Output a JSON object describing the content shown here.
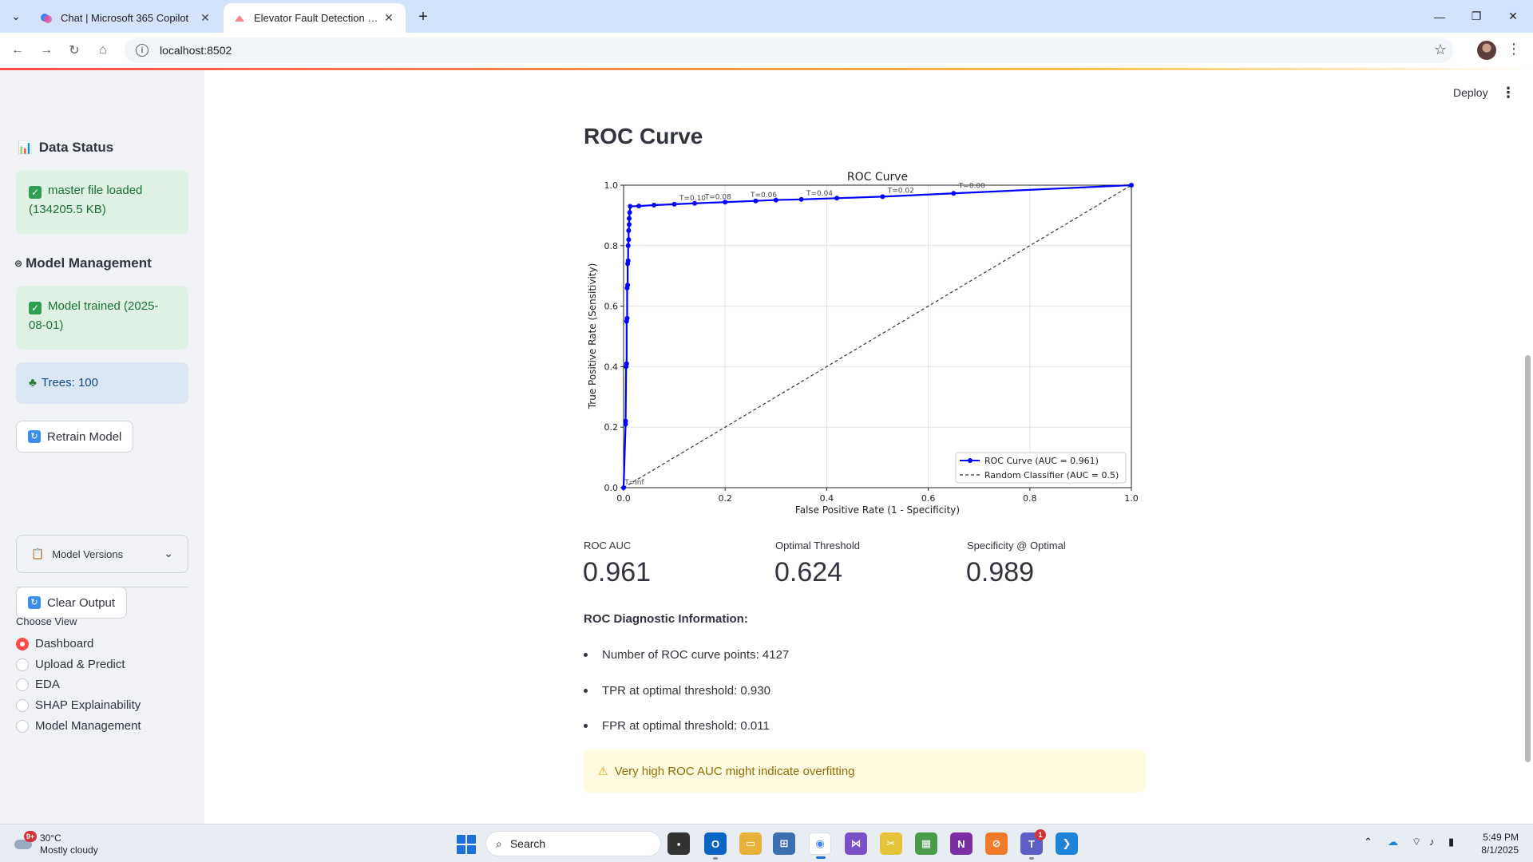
{
  "browser": {
    "tabs": [
      {
        "title": "Chat | Microsoft 365 Copilot",
        "active": false
      },
      {
        "title": "Elevator Fault Detection Dashboard",
        "active": true
      }
    ],
    "url": "localhost:8502"
  },
  "app": {
    "deploy_label": "Deploy",
    "sidebar": {
      "data_status_title": "Data Status",
      "data_status_msg": "master file loaded (134205.5 KB)",
      "model_mgmt_title": "Model Management",
      "model_trained_msg": "Model trained (2025-08-01)",
      "trees_msg": "Trees: 100",
      "retrain_label": "Retrain Model",
      "model_versions_label": "Model Versions",
      "clear_output_label": "Clear Output",
      "choose_view_label": "Choose View",
      "views": [
        "Dashboard",
        "Upload & Predict",
        "EDA",
        "SHAP Explainability",
        "Model Management"
      ],
      "selected_view": "Dashboard"
    },
    "main": {
      "section_title": "ROC Curve",
      "metrics": [
        {
          "label": "ROC AUC",
          "value": "0.961"
        },
        {
          "label": "Optimal Threshold",
          "value": "0.624"
        },
        {
          "label": "Specificity @ Optimal",
          "value": "0.989"
        }
      ],
      "diagnostic_title": "ROC Diagnostic Information:",
      "diagnostics": [
        "Number of ROC curve points: 4127",
        "TPR at optimal threshold: 0.930",
        "FPR at optimal threshold: 0.011"
      ],
      "warning": "Very high ROC AUC might indicate overfitting"
    }
  },
  "chart_data": {
    "type": "line",
    "title": "ROC Curve",
    "xlabel": "False Positive Rate (1 - Specificity)",
    "ylabel": "True Positive Rate (Sensitivity)",
    "xlim": [
      0.0,
      1.0
    ],
    "ylim": [
      0.0,
      1.0
    ],
    "xticks": [
      "0.0",
      "0.2",
      "0.4",
      "0.6",
      "0.8",
      "1.0"
    ],
    "yticks": [
      "0.0",
      "0.2",
      "0.4",
      "0.6",
      "0.8",
      "1.0"
    ],
    "grid": true,
    "legend_position": "bottom-right",
    "series": [
      {
        "name": "ROC Curve (AUC = 0.961)",
        "color": "#0000ff",
        "style": "solid-markers",
        "points": [
          [
            0.0,
            0.0
          ],
          [
            0.004,
            0.21
          ],
          [
            0.004,
            0.22
          ],
          [
            0.005,
            0.4
          ],
          [
            0.006,
            0.41
          ],
          [
            0.006,
            0.55
          ],
          [
            0.007,
            0.56
          ],
          [
            0.007,
            0.66
          ],
          [
            0.008,
            0.67
          ],
          [
            0.008,
            0.74
          ],
          [
            0.009,
            0.75
          ],
          [
            0.009,
            0.8
          ],
          [
            0.01,
            0.82
          ],
          [
            0.01,
            0.85
          ],
          [
            0.011,
            0.87
          ],
          [
            0.011,
            0.89
          ],
          [
            0.012,
            0.91
          ],
          [
            0.013,
            0.93
          ],
          [
            0.03,
            0.931
          ],
          [
            0.06,
            0.934
          ],
          [
            0.1,
            0.937
          ],
          [
            0.14,
            0.94
          ],
          [
            0.2,
            0.944
          ],
          [
            0.26,
            0.948
          ],
          [
            0.3,
            0.951
          ],
          [
            0.35,
            0.953
          ],
          [
            0.42,
            0.957
          ],
          [
            0.51,
            0.962
          ],
          [
            0.65,
            0.973
          ],
          [
            1.0,
            1.0
          ]
        ]
      },
      {
        "name": "Random Classifier (AUC = 0.5)",
        "color": "#333333",
        "style": "dashed",
        "points": [
          [
            0.0,
            0.0
          ],
          [
            1.0,
            1.0
          ]
        ]
      }
    ],
    "annotations": [
      {
        "text": "T=inf",
        "x": 0.002,
        "y": 0.005
      },
      {
        "text": "T=0.10",
        "x": 0.11,
        "y": 0.945
      },
      {
        "text": "T=0.08",
        "x": 0.16,
        "y": 0.948
      },
      {
        "text": "T=0.06",
        "x": 0.25,
        "y": 0.955
      },
      {
        "text": "T=0.04",
        "x": 0.36,
        "y": 0.96
      },
      {
        "text": "T=0.02",
        "x": 0.52,
        "y": 0.97
      },
      {
        "text": "T=0.00",
        "x": 0.66,
        "y": 0.985
      }
    ]
  }
}
